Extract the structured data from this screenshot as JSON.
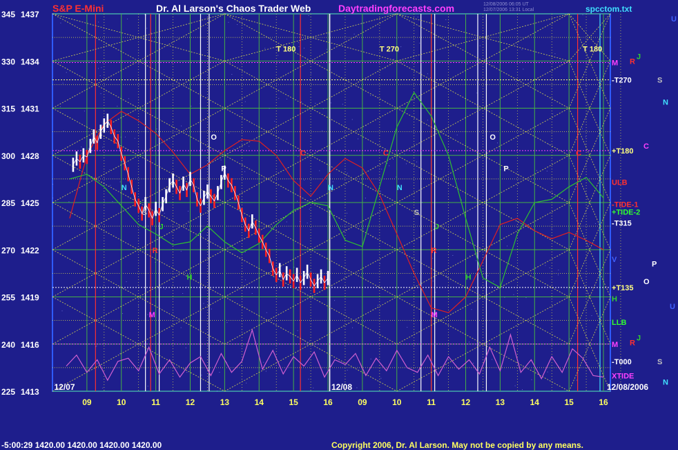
{
  "header": {
    "symbol": "S&P E-Mini",
    "site": "Dr. Al Larson's Chaos Trader Web",
    "domain": "Daytradingforecasts.com",
    "file": "spcctom.txt",
    "time_line1": "12/08/2006 06:05 UT",
    "time_line2": "12/07/2006 13:31 Local"
  },
  "footer": {
    "readout": "-5:00:29   1420.00  1420.00  1420.00  1420.00",
    "copyright": "Copyright 2006, Dr. Al Larson. May not be copied by any means."
  },
  "colors": {
    "background": "#1e1e8c",
    "plot_border": "#2f5bff",
    "grid": "#46b046",
    "projection_lines": "#e6e64a",
    "price_bars": "#ffffff",
    "down_bars": "#ff2020",
    "red_flux": "#e02020",
    "green_flux": "#30c030",
    "tide_oscillator": "#d060d0"
  },
  "chart_data": {
    "type": "line",
    "title": "S&P E-Mini",
    "xlabel": "",
    "ylabel": "",
    "ylim": [
      1413,
      1437
    ],
    "y_ticks": [
      {
        "left": "345",
        "price": "1437"
      },
      {
        "left": "330",
        "price": "1434"
      },
      {
        "left": "315",
        "price": "1431"
      },
      {
        "left": "300",
        "price": "1428"
      },
      {
        "left": "285",
        "price": "1425"
      },
      {
        "left": "270",
        "price": "1422"
      },
      {
        "left": "255",
        "price": "1419"
      },
      {
        "left": "240",
        "price": "1416"
      },
      {
        "left": "225",
        "price": "1413"
      }
    ],
    "x_ticks": [
      "09",
      "10",
      "11",
      "12",
      "13",
      "14",
      "15",
      "16",
      "09",
      "10",
      "11",
      "12",
      "13",
      "14",
      "15",
      "16"
    ],
    "date_labels": [
      "12/07",
      "12/08",
      "12/08/2006"
    ],
    "grid": true,
    "price_series": {
      "name": "price",
      "x": [
        8.6,
        8.7,
        8.8,
        8.9,
        9.0,
        9.1,
        9.2,
        9.3,
        9.4,
        9.5,
        9.6,
        9.7,
        9.8,
        9.9,
        10.0,
        10.1,
        10.2,
        10.3,
        10.4,
        10.5,
        10.6,
        10.7,
        10.8,
        10.9,
        11.0,
        11.1,
        11.2,
        11.3,
        11.4,
        11.5,
        11.6,
        11.7,
        11.8,
        11.9,
        12.0,
        12.1,
        12.2,
        12.3,
        12.4,
        12.5,
        12.6,
        12.7,
        12.8,
        12.9,
        13.0,
        13.1,
        13.2,
        13.3,
        13.4,
        13.5,
        13.6,
        13.7,
        13.8,
        13.9,
        14.0,
        14.1,
        14.2,
        14.3,
        14.4,
        14.5,
        14.6,
        14.7,
        14.8,
        14.9,
        15.0,
        15.1,
        15.2,
        15.3,
        15.4,
        15.5,
        15.6,
        15.7,
        15.8,
        15.9,
        16.0
      ],
      "values": [
        1427.4,
        1427.8,
        1427.6,
        1428.0,
        1427.9,
        1428.6,
        1429.2,
        1428.8,
        1429.5,
        1429.9,
        1430.2,
        1429.8,
        1429.2,
        1428.9,
        1428.1,
        1427.5,
        1426.8,
        1426.0,
        1425.2,
        1424.8,
        1424.3,
        1424.9,
        1424.5,
        1424.0,
        1424.6,
        1424.2,
        1424.9,
        1425.4,
        1426.1,
        1426.4,
        1426.0,
        1425.6,
        1426.2,
        1425.8,
        1426.5,
        1426.1,
        1425.2,
        1424.8,
        1425.3,
        1425.7,
        1425.4,
        1425.1,
        1425.6,
        1426.3,
        1426.9,
        1426.4,
        1426.1,
        1425.6,
        1425.0,
        1424.2,
        1423.6,
        1423.2,
        1423.8,
        1423.4,
        1422.9,
        1422.5,
        1422.0,
        1421.6,
        1420.8,
        1420.4,
        1420.7,
        1420.1,
        1420.5,
        1420.3,
        1420.0,
        1420.4,
        1419.9,
        1420.2,
        1420.6,
        1420.1,
        1419.7,
        1420.0,
        1420.3,
        1419.9,
        1420.2
      ]
    },
    "red_flux": {
      "name": "red flux",
      "x": [
        8.5,
        9.0,
        9.5,
        10.0,
        10.5,
        11.0,
        11.5,
        12.0,
        12.5,
        13.0,
        13.5,
        14.0,
        14.5,
        15.0,
        15.5,
        16.0,
        16.5,
        17.0,
        17.5,
        18.0,
        18.5,
        19.0,
        19.5,
        20.0,
        20.5,
        21.0,
        21.5,
        22.0,
        22.5,
        23.0,
        23.5,
        24.0
      ],
      "values": [
        1424.0,
        1428.0,
        1430.0,
        1430.8,
        1430.2,
        1429.4,
        1428.2,
        1426.8,
        1427.4,
        1428.3,
        1429.0,
        1428.9,
        1428.0,
        1426.4,
        1425.4,
        1426.8,
        1427.8,
        1427.2,
        1425.5,
        1423.0,
        1420.5,
        1418.3,
        1418.0,
        1419.0,
        1421.3,
        1423.6,
        1424.0,
        1423.2,
        1422.7,
        1423.1,
        1422.6,
        1422.0
      ]
    },
    "green_flux": {
      "name": "green flux",
      "x": [
        8.5,
        9.0,
        9.5,
        10.0,
        10.5,
        11.0,
        11.5,
        12.0,
        12.5,
        13.0,
        13.5,
        14.0,
        14.5,
        15.0,
        15.5,
        16.0,
        16.5,
        17.0,
        17.5,
        18.0,
        18.5,
        19.0,
        19.5,
        20.0,
        20.5,
        21.0,
        21.5,
        22.0,
        22.5,
        23.0,
        23.5,
        24.0
      ],
      "values": [
        1426.5,
        1426.8,
        1426.0,
        1424.8,
        1423.6,
        1423.0,
        1422.3,
        1422.5,
        1423.5,
        1422.5,
        1421.8,
        1422.4,
        1423.6,
        1424.5,
        1425.0,
        1424.8,
        1422.6,
        1422.2,
        1426.0,
        1429.8,
        1432.0,
        1430.5,
        1428.0,
        1424.0,
        1420.2,
        1419.6,
        1423.0,
        1425.0,
        1425.2,
        1426.0,
        1426.6,
        1425.3
      ]
    },
    "tide_oscillator": {
      "name": "XTIDE",
      "x": [
        8.4,
        8.7,
        9.0,
        9.3,
        9.6,
        9.9,
        10.2,
        10.5,
        10.8,
        11.1,
        11.4,
        11.7,
        12.0,
        12.3,
        12.6,
        12.9,
        13.2,
        13.5,
        13.8,
        14.1,
        14.4,
        14.7,
        15.0,
        15.3,
        15.6,
        15.9,
        16.2,
        16.5,
        16.8,
        17.1,
        17.4,
        17.7,
        18.0,
        18.3,
        18.6,
        18.9,
        19.2,
        19.5,
        19.8,
        20.1,
        20.4,
        20.7,
        21.0,
        21.3,
        21.6,
        21.9,
        22.2,
        22.5,
        22.8,
        23.1,
        23.4,
        23.7,
        24.0
      ],
      "values": [
        1414.6,
        1415.3,
        1414.2,
        1415.0,
        1413.7,
        1414.9,
        1415.1,
        1414.3,
        1415.8,
        1414.1,
        1415.0,
        1413.9,
        1414.8,
        1415.2,
        1414.0,
        1415.4,
        1414.2,
        1414.9,
        1416.9,
        1414.4,
        1415.6,
        1414.1,
        1415.2,
        1414.6,
        1415.5,
        1413.9,
        1415.0,
        1414.7,
        1415.4,
        1414.0,
        1415.1,
        1414.3,
        1415.6,
        1414.5,
        1414.2,
        1415.3,
        1414.0,
        1415.2,
        1414.4,
        1415.0,
        1414.1,
        1415.8,
        1414.3,
        1416.6,
        1414.2,
        1415.0,
        1413.8,
        1415.2,
        1414.2,
        1415.7,
        1415.1,
        1414.0,
        1413.9
      ]
    },
    "annotations": [
      {
        "text": "T 180",
        "x": 14.5,
        "y": 1434.6,
        "color": "#ffff80"
      },
      {
        "text": "T 270",
        "x": 17.5,
        "y": 1434.6,
        "color": "#ffff80"
      },
      {
        "text": "T 180",
        "x": 23.4,
        "y": 1434.6,
        "color": "#ffff80"
      },
      {
        "text": "O",
        "x": 12.6,
        "y": 1429.0,
        "color": "#ffffff"
      },
      {
        "text": "O",
        "x": 20.7,
        "y": 1429.0,
        "color": "#ffffff"
      },
      {
        "text": "P",
        "x": 12.9,
        "y": 1427.0,
        "color": "#ffffff"
      },
      {
        "text": "P",
        "x": 21.1,
        "y": 1427.0,
        "color": "#ffffff"
      },
      {
        "text": "C",
        "x": 15.2,
        "y": 1428.0,
        "color": "#ff3030"
      },
      {
        "text": "C",
        "x": 17.6,
        "y": 1428.0,
        "color": "#ff3030"
      },
      {
        "text": "C",
        "x": 23.2,
        "y": 1428.0,
        "color": "#ff3030"
      },
      {
        "text": "N",
        "x": 10.0,
        "y": 1425.8,
        "color": "#40e0ff"
      },
      {
        "text": "N",
        "x": 16.0,
        "y": 1425.8,
        "color": "#40e0ff"
      },
      {
        "text": "N",
        "x": 18.0,
        "y": 1425.8,
        "color": "#40e0ff"
      },
      {
        "text": "S",
        "x": 10.6,
        "y": 1424.2,
        "color": "#c0c0c0"
      },
      {
        "text": "S",
        "x": 18.5,
        "y": 1424.2,
        "color": "#c0c0c0"
      },
      {
        "text": "J",
        "x": 11.1,
        "y": 1423.3,
        "color": "#30d030"
      },
      {
        "text": "J",
        "x": 19.1,
        "y": 1423.3,
        "color": "#30d030"
      },
      {
        "text": "R",
        "x": 10.9,
        "y": 1421.8,
        "color": "#ff3030"
      },
      {
        "text": "R",
        "x": 19.0,
        "y": 1421.8,
        "color": "#ff3030"
      },
      {
        "text": "H",
        "x": 11.9,
        "y": 1420.1,
        "color": "#30d030"
      },
      {
        "text": "H",
        "x": 20.0,
        "y": 1420.1,
        "color": "#30d030"
      },
      {
        "text": "M",
        "x": 10.8,
        "y": 1417.7,
        "color": "#ff40ff"
      },
      {
        "text": "M",
        "x": 19.0,
        "y": 1417.7,
        "color": "#ff40ff"
      }
    ],
    "right_labels": [
      {
        "text": "M",
        "y": 1433.9,
        "color": "#ff40ff"
      },
      {
        "text": "-T270",
        "y": 1432.8,
        "color": "#ffffff"
      },
      {
        "text": "+T180",
        "y": 1428.3,
        "color": "#ffff80"
      },
      {
        "text": "ULB",
        "y": 1426.3,
        "color": "#ff3030"
      },
      {
        "text": "-TIDE-1",
        "y": 1424.9,
        "color": "#ff3030"
      },
      {
        "text": "+TIDE-2",
        "y": 1424.4,
        "color": "#30ff30"
      },
      {
        "text": "-T315",
        "y": 1423.7,
        "color": "#ffffff"
      },
      {
        "text": "V",
        "y": 1421.4,
        "color": "#4060ff"
      },
      {
        "text": "+T135",
        "y": 1419.6,
        "color": "#ffff80"
      },
      {
        "text": "H",
        "y": 1418.9,
        "color": "#30d030"
      },
      {
        "text": "LLB",
        "y": 1417.4,
        "color": "#30ff30"
      },
      {
        "text": "M",
        "y": 1416.0,
        "color": "#ff40ff"
      },
      {
        "text": "-T000",
        "y": 1414.9,
        "color": "#ffffff"
      },
      {
        "text": "XTIDE",
        "y": 1414.0,
        "color": "#ff40ff"
      }
    ],
    "far_right_labels": [
      {
        "text": "U",
        "y": 1436.7,
        "color": "#4060ff"
      },
      {
        "text": "J",
        "y": 1434.3,
        "color": "#30d030"
      },
      {
        "text": "R",
        "y": 1434.0,
        "color": "#ff3030"
      },
      {
        "text": "S",
        "y": 1432.8,
        "color": "#c0c0c0"
      },
      {
        "text": "N",
        "y": 1431.4,
        "color": "#40e0ff"
      },
      {
        "text": "C",
        "y": 1428.6,
        "color": "#ff40ff"
      },
      {
        "text": "P",
        "y": 1421.1,
        "color": "#ffffff"
      },
      {
        "text": "O",
        "y": 1420.0,
        "color": "#ffffff"
      },
      {
        "text": "U",
        "y": 1418.4,
        "color": "#4060ff"
      },
      {
        "text": "J",
        "y": 1416.4,
        "color": "#30d030"
      },
      {
        "text": "R",
        "y": 1416.1,
        "color": "#ff3030"
      },
      {
        "text": "S",
        "y": 1414.9,
        "color": "#c0c0c0"
      },
      {
        "text": "N",
        "y": 1413.6,
        "color": "#40e0ff"
      }
    ],
    "time_lines": [
      {
        "x": 9.25,
        "color": "#ff3030"
      },
      {
        "x": 10.7,
        "color": "#ffffff"
      },
      {
        "x": 10.85,
        "color": "#ff3030"
      },
      {
        "x": 11.1,
        "color": "#ffffff"
      },
      {
        "x": 12.3,
        "color": "#ffffff"
      },
      {
        "x": 12.55,
        "color": "#ffffff"
      },
      {
        "x": 15.2,
        "color": "#ff3030"
      },
      {
        "x": 16.05,
        "color": "#ffffff"
      },
      {
        "x": 18.7,
        "color": "#ffffff"
      },
      {
        "x": 19.0,
        "color": "#ff3030"
      },
      {
        "x": 19.1,
        "color": "#ffffff"
      },
      {
        "x": 20.35,
        "color": "#ffffff"
      },
      {
        "x": 20.6,
        "color": "#ffffff"
      },
      {
        "x": 23.25,
        "color": "#ff3030"
      },
      {
        "x": 23.9,
        "color": "#40e0ff"
      }
    ],
    "dotted_levels": [
      {
        "y": 1433.9,
        "color": "#ff40ff"
      },
      {
        "y": 1428.3,
        "color": "#ff40ff"
      },
      {
        "y": 1416.0,
        "color": "#ff40ff"
      },
      {
        "y": 1419.6,
        "color": "#ffffff"
      },
      {
        "y": 1432.8,
        "color": "#ffff80"
      }
    ]
  }
}
